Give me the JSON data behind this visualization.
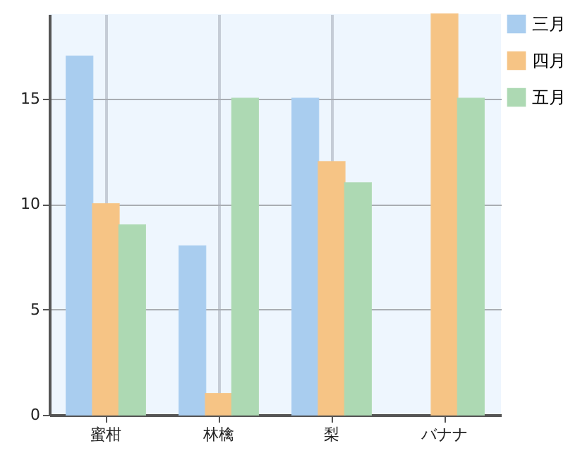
{
  "chart_data": {
    "type": "bar",
    "categories": [
      "蜜柑",
      "林檎",
      "梨",
      "バナナ"
    ],
    "series": [
      {
        "name": "三月",
        "color": "#a9cdef",
        "values": [
          17,
          8,
          15,
          null
        ]
      },
      {
        "name": "四月",
        "color": "#f6c485",
        "values": [
          10,
          1,
          12,
          19
        ]
      },
      {
        "name": "五月",
        "color": "#add9b3",
        "values": [
          9,
          15,
          11,
          15
        ]
      }
    ],
    "ylim": [
      0,
      19
    ],
    "yticks": [
      0,
      5,
      10,
      15
    ],
    "grid": true,
    "legend": "right"
  }
}
